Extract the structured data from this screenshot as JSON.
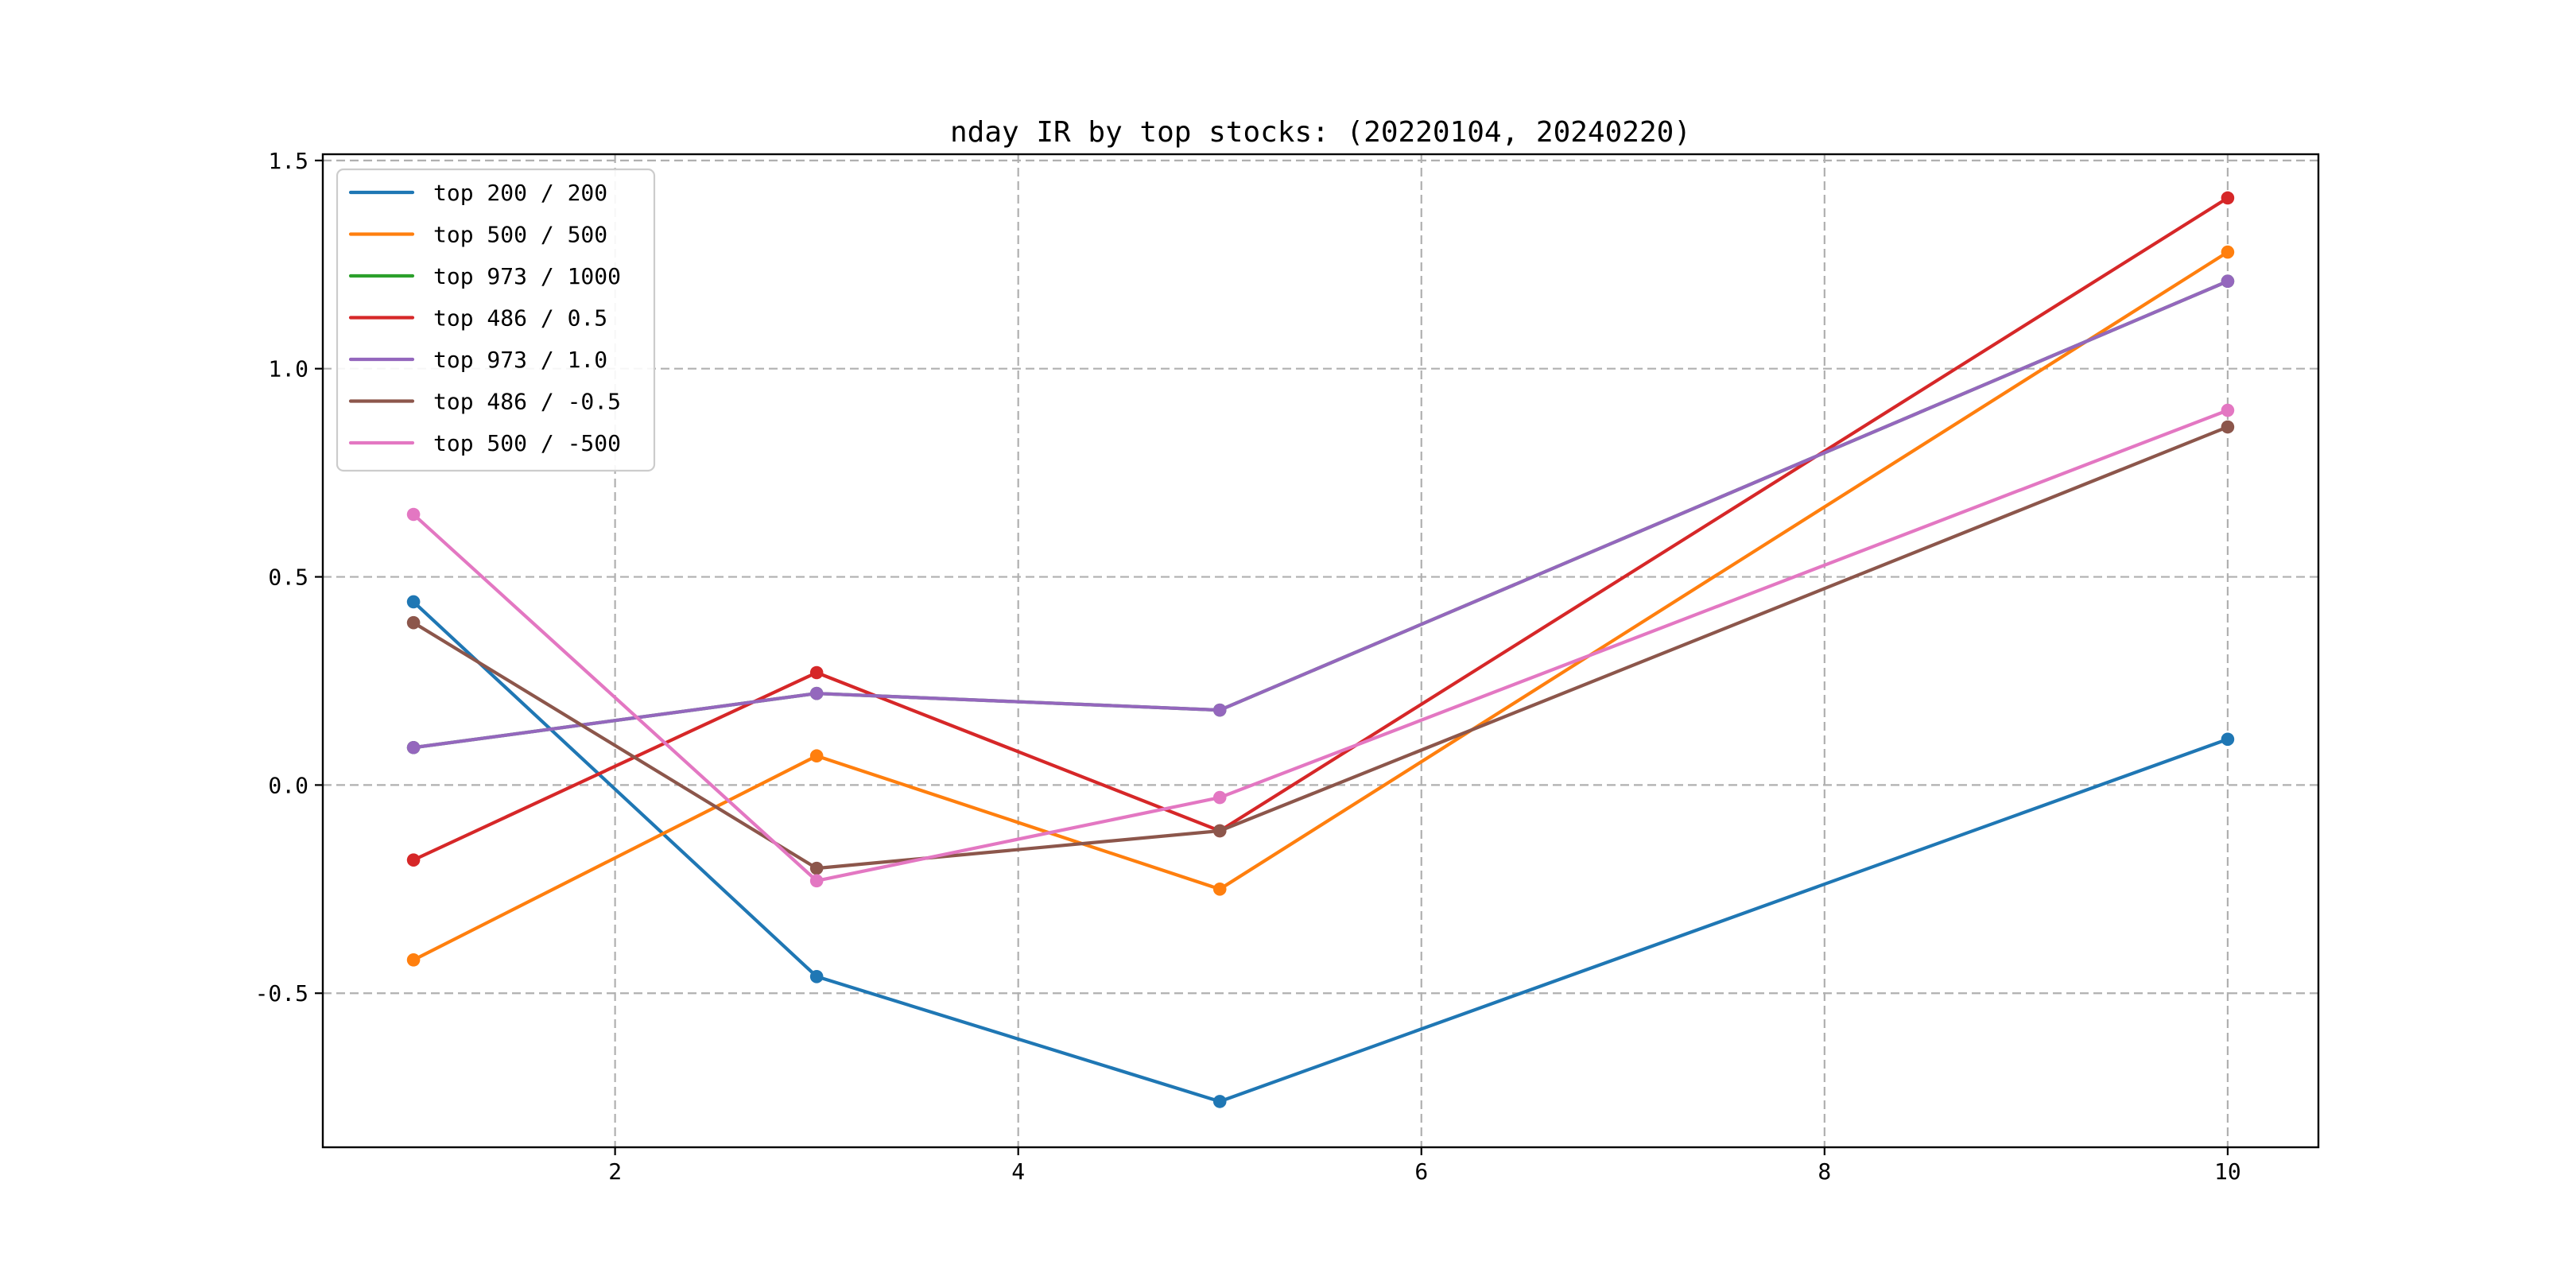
{
  "chart_data": {
    "type": "line",
    "title": "nday IR by top stocks: (20220104, 20240220)",
    "x": [
      1,
      3,
      5,
      10
    ],
    "series": [
      {
        "name": "top 200 / 200",
        "color": "#1f77b4",
        "values": [
          0.44,
          -0.46,
          -0.76,
          0.11
        ]
      },
      {
        "name": "top 500 / 500",
        "color": "#ff7f0e",
        "values": [
          -0.42,
          0.07,
          -0.25,
          1.28
        ]
      },
      {
        "name": "top 973 / 1000",
        "color": "#2ca02c",
        "values": [
          0.09,
          0.22,
          0.18,
          1.21
        ]
      },
      {
        "name": "top 486 / 0.5",
        "color": "#d62728",
        "values": [
          -0.18,
          0.27,
          -0.11,
          1.41
        ]
      },
      {
        "name": "top 973 / 1.0",
        "color": "#9467bd",
        "values": [
          0.09,
          0.22,
          0.18,
          1.21
        ]
      },
      {
        "name": "top 486 / -0.5",
        "color": "#8c564b",
        "values": [
          0.39,
          -0.2,
          -0.11,
          0.86
        ]
      },
      {
        "name": "top 500 / -500",
        "color": "#e377c2",
        "values": [
          0.65,
          -0.23,
          -0.03,
          0.9
        ]
      }
    ],
    "xtick_labels": [
      "2",
      "4",
      "6",
      "8",
      "10"
    ],
    "xtick_values": [
      2,
      4,
      6,
      8,
      10
    ],
    "ytick_labels": [
      "-0.5",
      "0.0",
      "0.5",
      "1.0",
      "1.5"
    ],
    "ytick_values": [
      -0.5,
      0.0,
      0.5,
      1.0,
      1.5
    ],
    "xlim": [
      0.55,
      10.45
    ],
    "ylim": [
      -0.87,
      1.515
    ],
    "grid": true,
    "grid_style": "dashed",
    "marker": "circle",
    "legend_position": "upper left",
    "colors": {
      "grid": "#b0b0b0",
      "spine": "#000000",
      "text": "#000000",
      "legend_border": "#cccccc",
      "legend_background": "#ffffff",
      "figure_background": "#ffffff"
    }
  }
}
